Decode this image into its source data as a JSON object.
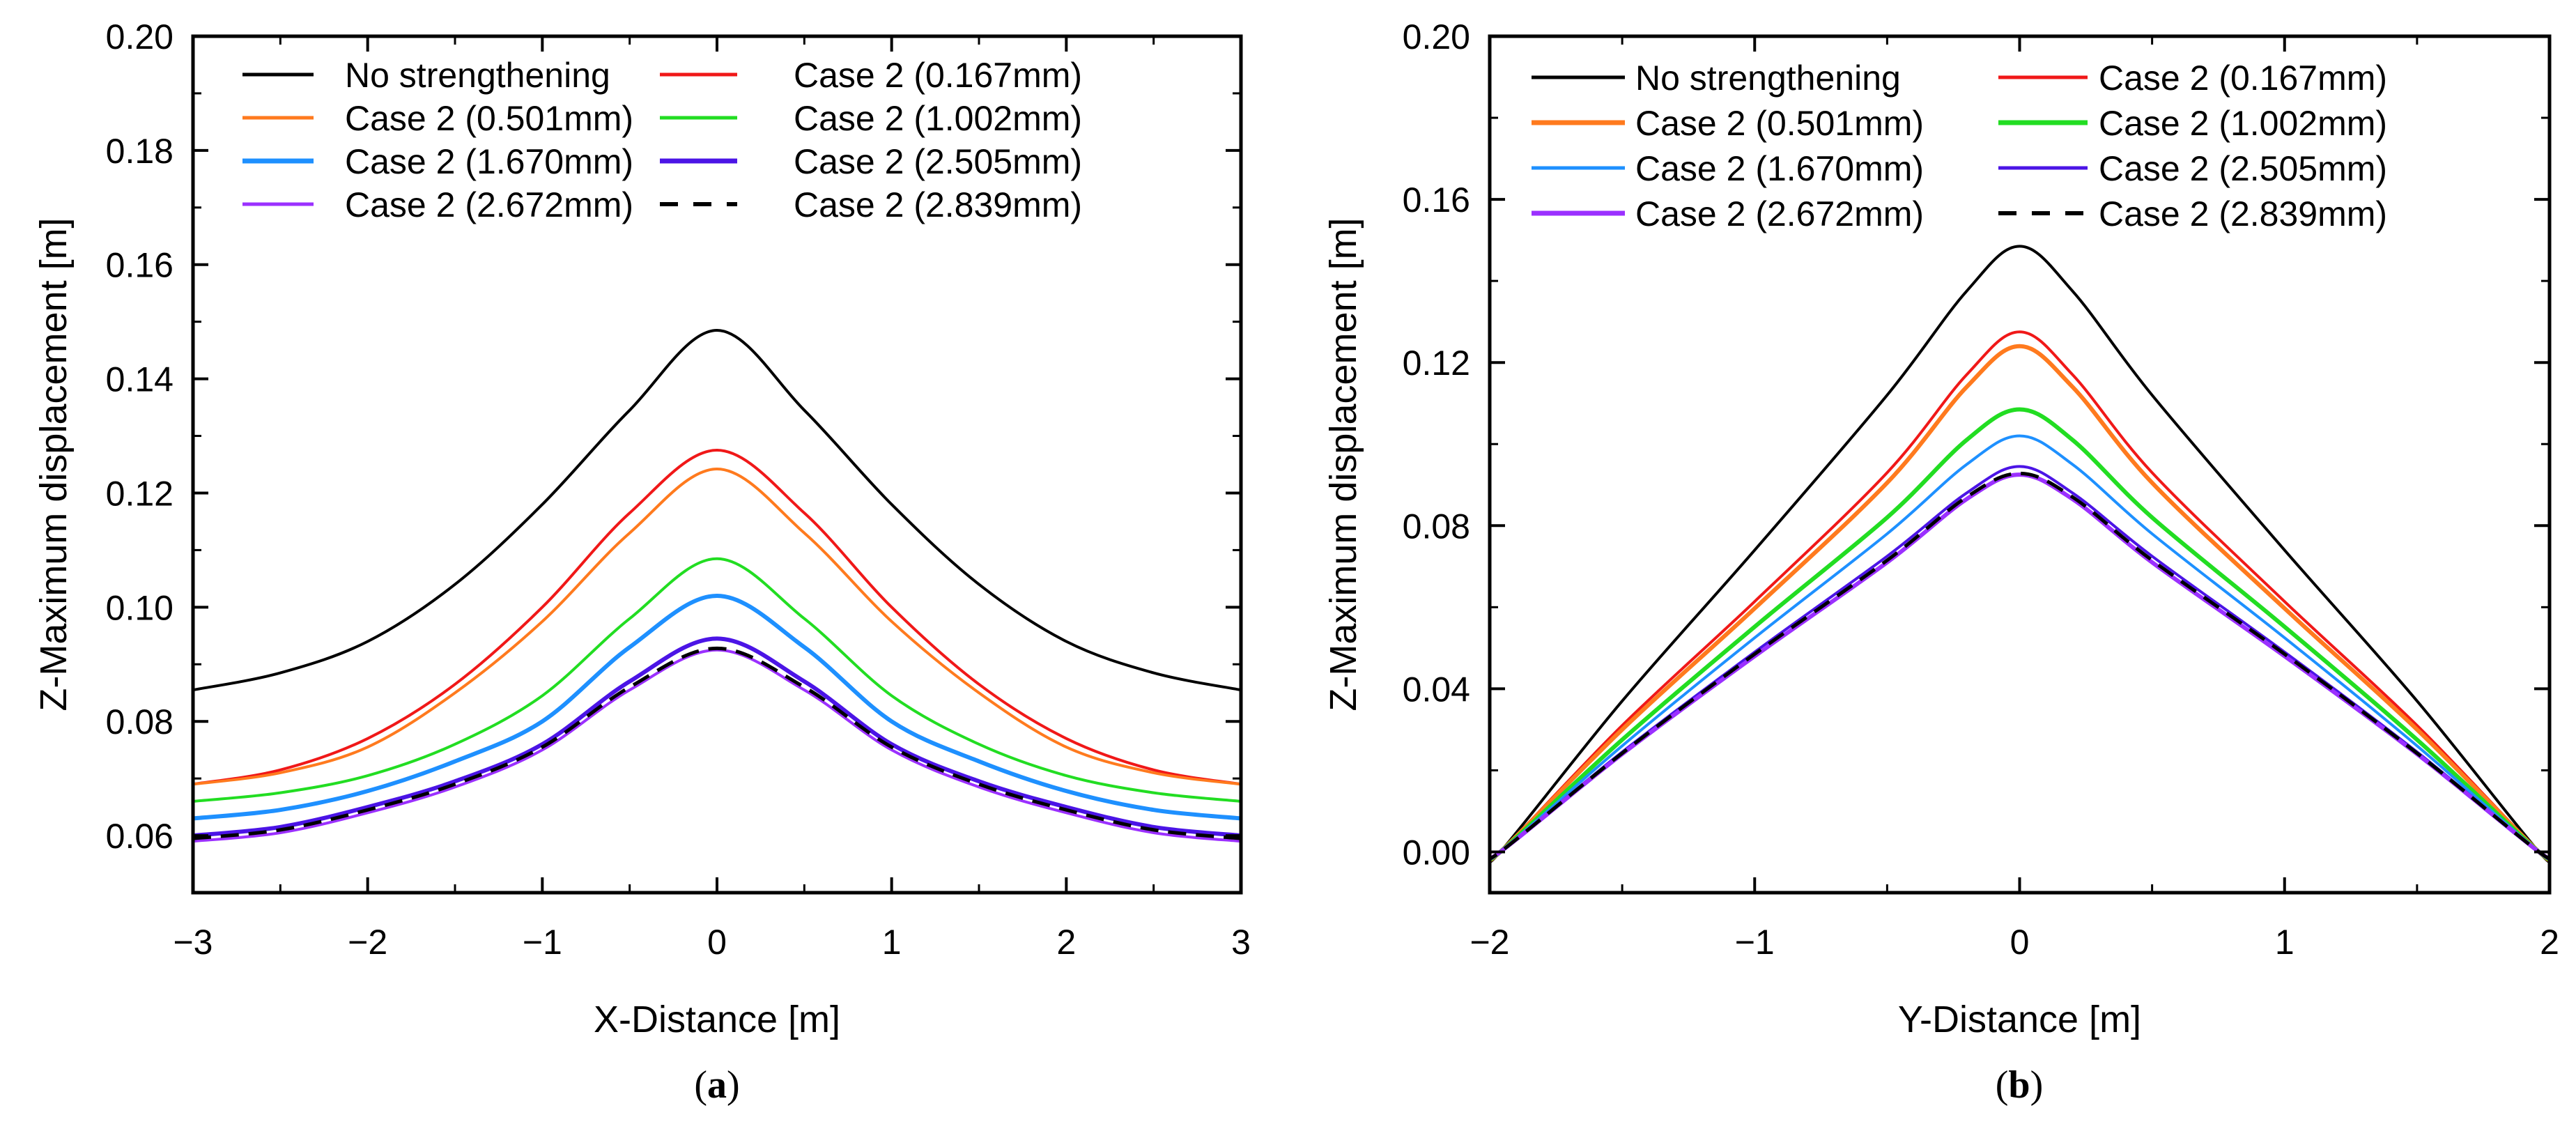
{
  "chart_data": [
    {
      "type": "line",
      "caption_open": "(",
      "caption_letter": "a",
      "caption_close": ")",
      "xlabel": "X-Distance [m]",
      "ylabel": "Z-Maximum displacement [m]",
      "xlim": [
        -3,
        3
      ],
      "ylim": [
        0.05,
        0.2
      ],
      "xticks": [
        -3,
        -2,
        -1,
        0,
        1,
        2,
        3
      ],
      "xtick_labels": [
        "−3",
        "−2",
        "−1",
        "0",
        "1",
        "2",
        "3"
      ],
      "yticks": [
        0.06,
        0.08,
        0.1,
        0.12,
        0.14,
        0.16,
        0.18,
        0.2
      ],
      "ytick_labels": [
        "0.06",
        "0.08",
        "0.10",
        "0.12",
        "0.14",
        "0.16",
        "0.18",
        "0.20"
      ],
      "legend_placement": "top",
      "x": [
        -3,
        -2.5,
        -2,
        -1.5,
        -1,
        -0.5,
        0,
        0.5,
        1,
        1.5,
        2,
        2.5,
        3
      ],
      "series": [
        {
          "name": "No strengthening",
          "color": "#000000",
          "dash": false,
          "values": [
            0.0855,
            0.0885,
            0.094,
            0.104,
            0.118,
            0.1345,
            0.1485,
            0.1345,
            0.118,
            0.104,
            0.094,
            0.0885,
            0.0855
          ]
        },
        {
          "name": "Case 2 (0.167mm)",
          "color": "#f01818",
          "dash": false,
          "values": [
            0.069,
            0.0715,
            0.077,
            0.0865,
            0.1,
            0.1165,
            0.1275,
            0.1165,
            0.1,
            0.0865,
            0.077,
            0.0715,
            0.069
          ]
        },
        {
          "name": "Case 2 (0.501mm)",
          "color": "#ff7a1e",
          "dash": false,
          "values": [
            0.069,
            0.071,
            0.0755,
            0.085,
            0.0975,
            0.113,
            0.1242,
            0.113,
            0.0975,
            0.085,
            0.0755,
            0.071,
            0.069
          ]
        },
        {
          "name": "Case 2 (1.002mm)",
          "color": "#22dd22",
          "dash": false,
          "values": [
            0.066,
            0.0675,
            0.0705,
            0.076,
            0.0845,
            0.098,
            0.1085,
            0.098,
            0.0845,
            0.076,
            0.0705,
            0.0675,
            0.066
          ]
        },
        {
          "name": "Case 2 (1.670mm)",
          "color": "#1e90ff",
          "dash": false,
          "values": [
            0.063,
            0.0645,
            0.0678,
            0.073,
            0.08,
            0.093,
            0.102,
            0.093,
            0.08,
            0.073,
            0.0678,
            0.0645,
            0.063
          ]
        },
        {
          "name": "Case 2 (2.505mm)",
          "color": "#4b14e6",
          "dash": false,
          "values": [
            0.06,
            0.0615,
            0.065,
            0.0695,
            0.076,
            0.087,
            0.0945,
            0.087,
            0.076,
            0.0695,
            0.065,
            0.0615,
            0.06
          ]
        },
        {
          "name": "Case 2 (2.672mm)",
          "color": "#9b30ff",
          "dash": false,
          "values": [
            0.059,
            0.0605,
            0.064,
            0.0685,
            0.075,
            0.0855,
            0.0925,
            0.0855,
            0.075,
            0.0685,
            0.064,
            0.0605,
            0.059
          ]
        },
        {
          "name": "Case 2 (2.839mm)",
          "color": "#000000",
          "dash": true,
          "values": [
            0.0595,
            0.061,
            0.0645,
            0.069,
            0.0755,
            0.086,
            0.0928,
            0.086,
            0.0755,
            0.069,
            0.0645,
            0.061,
            0.0595
          ]
        }
      ]
    },
    {
      "type": "line",
      "caption_open": "(",
      "caption_letter": "b",
      "caption_close": ")",
      "xlabel": "Y-Distance [m]",
      "ylabel": "Z-Maximum displacement [m]",
      "xlim": [
        -2,
        2
      ],
      "ylim": [
        -0.01,
        0.2
      ],
      "xticks": [
        -2,
        -1,
        0,
        1,
        2
      ],
      "xtick_labels": [
        "−2",
        "−1",
        "0",
        "1",
        "2"
      ],
      "yticks": [
        0.0,
        0.04,
        0.08,
        0.12,
        0.16,
        0.2
      ],
      "ytick_labels": [
        "0.00",
        "0.04",
        "0.08",
        "0.12",
        "0.16",
        "0.20"
      ],
      "legend_placement": "top",
      "x": [
        -2,
        -1.96,
        -1.5,
        -1,
        -0.5,
        -0.2,
        0,
        0.2,
        0.5,
        1,
        1.5,
        1.96,
        2
      ],
      "series": [
        {
          "name": "No strengthening",
          "color": "#000000",
          "dash": false,
          "values": [
            0,
            0,
            0.037,
            0.074,
            0.112,
            0.1375,
            0.1485,
            0.1375,
            0.112,
            0.074,
            0.037,
            0,
            0
          ]
        },
        {
          "name": "Case 2 (0.167mm)",
          "color": "#f01818",
          "dash": false,
          "values": [
            0,
            0,
            0.031,
            0.0614,
            0.093,
            0.117,
            0.1275,
            0.117,
            0.093,
            0.0614,
            0.031,
            0,
            0
          ]
        },
        {
          "name": "Case 2 (0.501mm)",
          "color": "#ff7a1e",
          "dash": false,
          "values": [
            0,
            0,
            0.03,
            0.0597,
            0.0905,
            0.114,
            0.124,
            0.114,
            0.0905,
            0.0597,
            0.03,
            0,
            0
          ]
        },
        {
          "name": "Case 2 (1.002mm)",
          "color": "#22dd22",
          "dash": false,
          "values": [
            0,
            0,
            0.0275,
            0.0552,
            0.082,
            0.101,
            0.1085,
            0.101,
            0.082,
            0.0552,
            0.0275,
            0,
            0
          ]
        },
        {
          "name": "Case 2 (1.670mm)",
          "color": "#1e90ff",
          "dash": false,
          "values": [
            0,
            0,
            0.026,
            0.0525,
            0.078,
            0.095,
            0.102,
            0.095,
            0.078,
            0.0525,
            0.026,
            0,
            0
          ]
        },
        {
          "name": "Case 2 (2.505mm)",
          "color": "#4b14e6",
          "dash": false,
          "values": [
            0,
            0,
            0.0245,
            0.049,
            0.0725,
            0.088,
            0.0945,
            0.088,
            0.0725,
            0.049,
            0.0245,
            0,
            0
          ]
        },
        {
          "name": "Case 2 (2.672mm)",
          "color": "#9b30ff",
          "dash": false,
          "values": [
            0,
            0,
            0.024,
            0.048,
            0.071,
            0.0865,
            0.0925,
            0.0865,
            0.071,
            0.048,
            0.024,
            0,
            0
          ]
        },
        {
          "name": "Case 2 (2.839mm)",
          "color": "#000000",
          "dash": true,
          "values": [
            0,
            0,
            0.0242,
            0.0485,
            0.0715,
            0.087,
            0.0928,
            0.087,
            0.0715,
            0.0485,
            0.0242,
            0,
            0
          ]
        }
      ]
    }
  ]
}
